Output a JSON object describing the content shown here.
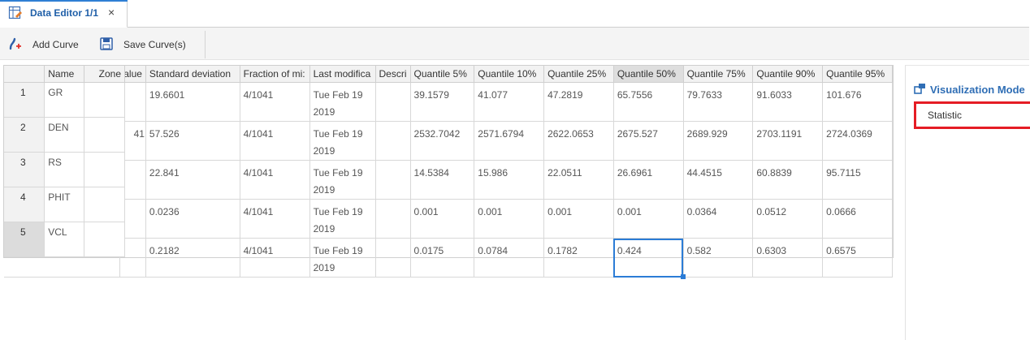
{
  "tab": {
    "title": "Data Editor 1/1",
    "close_glyph": "×",
    "icon": "data-editor-icon"
  },
  "toolbar": {
    "add_curve_label": "Add Curve",
    "save_curves_label": "Save Curve(s)",
    "add_icon": "add-curve-icon",
    "save_icon": "save-icon"
  },
  "grid": {
    "frozen_headers": [
      "Name",
      "Zone"
    ],
    "headers": [
      "alue",
      "Standard deviation",
      "Fraction of mi:",
      "Last modifica",
      "Descri",
      "Quantile 5%",
      "Quantile 10%",
      "Quantile 25%",
      "Quantile 50%",
      "Quantile 75%",
      "Quantile 90%",
      "Quantile 95%"
    ],
    "rows": [
      {
        "num": "1",
        "name": "GR",
        "zone": "",
        "cells": [
          "",
          "19.6601",
          "4/1041",
          "Tue Feb 19 2019",
          "",
          "39.1579",
          "41.077",
          "47.2819",
          "65.7556",
          "79.7633",
          "91.6033",
          "101.676"
        ]
      },
      {
        "num": "2",
        "name": "DEN",
        "zone": "",
        "cells": [
          "41",
          "57.526",
          "4/1041",
          "Tue Feb 19 2019",
          "",
          "2532.7042",
          "2571.6794",
          "2622.0653",
          "2675.527",
          "2689.929",
          "2703.1191",
          "2724.0369"
        ]
      },
      {
        "num": "3",
        "name": "RS",
        "zone": "",
        "cells": [
          "",
          "22.841",
          "4/1041",
          "Tue Feb 19 2019",
          "",
          "14.5384",
          "15.986",
          "22.0511",
          "26.6961",
          "44.4515",
          "60.8839",
          "95.7115"
        ]
      },
      {
        "num": "4",
        "name": "PHIT",
        "zone": "",
        "cells": [
          "",
          "0.0236",
          "4/1041",
          "Tue Feb 19 2019",
          "",
          "0.001",
          "0.001",
          "0.001",
          "0.001",
          "0.0364",
          "0.0512",
          "0.0666"
        ]
      },
      {
        "num": "5",
        "name": "VCL",
        "zone": "",
        "cells": [
          "",
          "0.2182",
          "4/1041",
          "Tue Feb 19 2019",
          "",
          "0.0175",
          "0.0784",
          "0.1782",
          "0.424",
          "0.582",
          "0.6303",
          "0.6575"
        ]
      }
    ]
  },
  "panel": {
    "title": "Visualization Mode",
    "mode": "Statistic",
    "icon": "visualization-icon"
  },
  "colors": {
    "accent": "#2f7fd4",
    "title_blue": "#2f6eb5",
    "highlight_red": "#e51c24"
  }
}
